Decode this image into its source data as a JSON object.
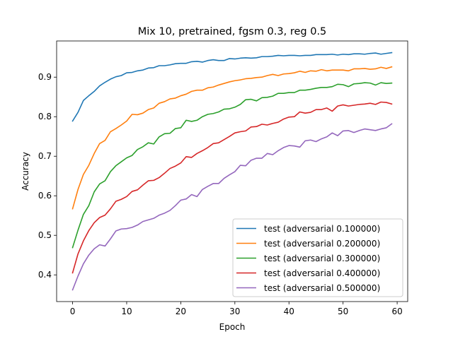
{
  "chart_data": {
    "type": "line",
    "title": "Mix 10, pretrained, fgsm 0.3, reg 0.5",
    "xlabel": "Epoch",
    "ylabel": "Accuracy",
    "xlim": [
      -2.95,
      61.95
    ],
    "ylim": [
      0.3325,
      0.9915
    ],
    "xticks": [
      0,
      10,
      20,
      30,
      40,
      50,
      60
    ],
    "yticks": [
      0.4,
      0.5,
      0.6,
      0.7,
      0.8,
      0.9
    ],
    "grid": false,
    "legend_position": "lower-right",
    "x": [
      0,
      1,
      2,
      3,
      4,
      5,
      6,
      7,
      8,
      9,
      10,
      11,
      12,
      13,
      14,
      15,
      16,
      17,
      18,
      19,
      20,
      21,
      22,
      23,
      24,
      25,
      26,
      27,
      28,
      29,
      30,
      31,
      32,
      33,
      34,
      35,
      36,
      37,
      38,
      39,
      40,
      41,
      42,
      43,
      44,
      45,
      46,
      47,
      48,
      49,
      50,
      51,
      52,
      53,
      54,
      55,
      56,
      57,
      58,
      59
    ],
    "series": [
      {
        "name": "test (adversarial 0.100000)",
        "color": "#1f77b4",
        "values": [
          0.789,
          0.811,
          0.841,
          0.853,
          0.864,
          0.878,
          0.887,
          0.895,
          0.901,
          0.904,
          0.911,
          0.912,
          0.916,
          0.918,
          0.923,
          0.924,
          0.929,
          0.929,
          0.931,
          0.934,
          0.935,
          0.935,
          0.939,
          0.94,
          0.938,
          0.942,
          0.944,
          0.942,
          0.942,
          0.947,
          0.946,
          0.948,
          0.949,
          0.948,
          0.949,
          0.952,
          0.952,
          0.953,
          0.955,
          0.954,
          0.955,
          0.955,
          0.954,
          0.955,
          0.955,
          0.957,
          0.957,
          0.957,
          0.958,
          0.956,
          0.958,
          0.957,
          0.959,
          0.959,
          0.958,
          0.96,
          0.961,
          0.958,
          0.96,
          0.962
        ]
      },
      {
        "name": "test (adversarial 0.200000)",
        "color": "#ff7f0e",
        "values": [
          0.567,
          0.616,
          0.654,
          0.677,
          0.707,
          0.732,
          0.74,
          0.762,
          0.77,
          0.779,
          0.789,
          0.806,
          0.805,
          0.809,
          0.818,
          0.822,
          0.834,
          0.838,
          0.845,
          0.847,
          0.853,
          0.857,
          0.864,
          0.867,
          0.867,
          0.873,
          0.875,
          0.88,
          0.884,
          0.888,
          0.891,
          0.893,
          0.896,
          0.897,
          0.899,
          0.9,
          0.904,
          0.907,
          0.904,
          0.908,
          0.909,
          0.911,
          0.915,
          0.912,
          0.916,
          0.915,
          0.919,
          0.916,
          0.918,
          0.918,
          0.918,
          0.916,
          0.921,
          0.921,
          0.922,
          0.92,
          0.921,
          0.925,
          0.922,
          0.926
        ]
      },
      {
        "name": "test (adversarial 0.300000)",
        "color": "#2ca02c",
        "values": [
          0.469,
          0.513,
          0.553,
          0.575,
          0.61,
          0.63,
          0.638,
          0.661,
          0.676,
          0.686,
          0.696,
          0.702,
          0.717,
          0.724,
          0.734,
          0.731,
          0.749,
          0.757,
          0.758,
          0.77,
          0.772,
          0.791,
          0.788,
          0.791,
          0.8,
          0.806,
          0.808,
          0.812,
          0.819,
          0.82,
          0.824,
          0.831,
          0.843,
          0.844,
          0.84,
          0.848,
          0.849,
          0.852,
          0.859,
          0.859,
          0.861,
          0.861,
          0.867,
          0.867,
          0.869,
          0.872,
          0.874,
          0.874,
          0.876,
          0.882,
          0.881,
          0.876,
          0.883,
          0.884,
          0.886,
          0.885,
          0.88,
          0.886,
          0.884,
          0.885
        ]
      },
      {
        "name": "test (adversarial 0.400000)",
        "color": "#d62728",
        "values": [
          0.405,
          0.453,
          0.486,
          0.512,
          0.532,
          0.545,
          0.551,
          0.567,
          0.586,
          0.591,
          0.598,
          0.611,
          0.615,
          0.627,
          0.638,
          0.639,
          0.646,
          0.657,
          0.669,
          0.675,
          0.683,
          0.699,
          0.697,
          0.707,
          0.714,
          0.722,
          0.732,
          0.734,
          0.742,
          0.75,
          0.759,
          0.762,
          0.764,
          0.774,
          0.775,
          0.781,
          0.779,
          0.783,
          0.786,
          0.794,
          0.799,
          0.8,
          0.812,
          0.809,
          0.811,
          0.818,
          0.818,
          0.822,
          0.814,
          0.827,
          0.83,
          0.827,
          0.829,
          0.831,
          0.832,
          0.834,
          0.831,
          0.837,
          0.836,
          0.832
        ]
      },
      {
        "name": "test (adversarial 0.500000)",
        "color": "#9467bd",
        "values": [
          0.362,
          0.397,
          0.428,
          0.45,
          0.466,
          0.476,
          0.473,
          0.491,
          0.511,
          0.516,
          0.517,
          0.52,
          0.526,
          0.535,
          0.539,
          0.543,
          0.551,
          0.556,
          0.563,
          0.575,
          0.589,
          0.592,
          0.603,
          0.598,
          0.616,
          0.624,
          0.631,
          0.631,
          0.644,
          0.653,
          0.661,
          0.677,
          0.676,
          0.69,
          0.695,
          0.695,
          0.707,
          0.704,
          0.714,
          0.722,
          0.727,
          0.726,
          0.723,
          0.739,
          0.741,
          0.737,
          0.744,
          0.749,
          0.759,
          0.752,
          0.764,
          0.765,
          0.76,
          0.765,
          0.769,
          0.767,
          0.765,
          0.769,
          0.772,
          0.782
        ]
      }
    ]
  }
}
